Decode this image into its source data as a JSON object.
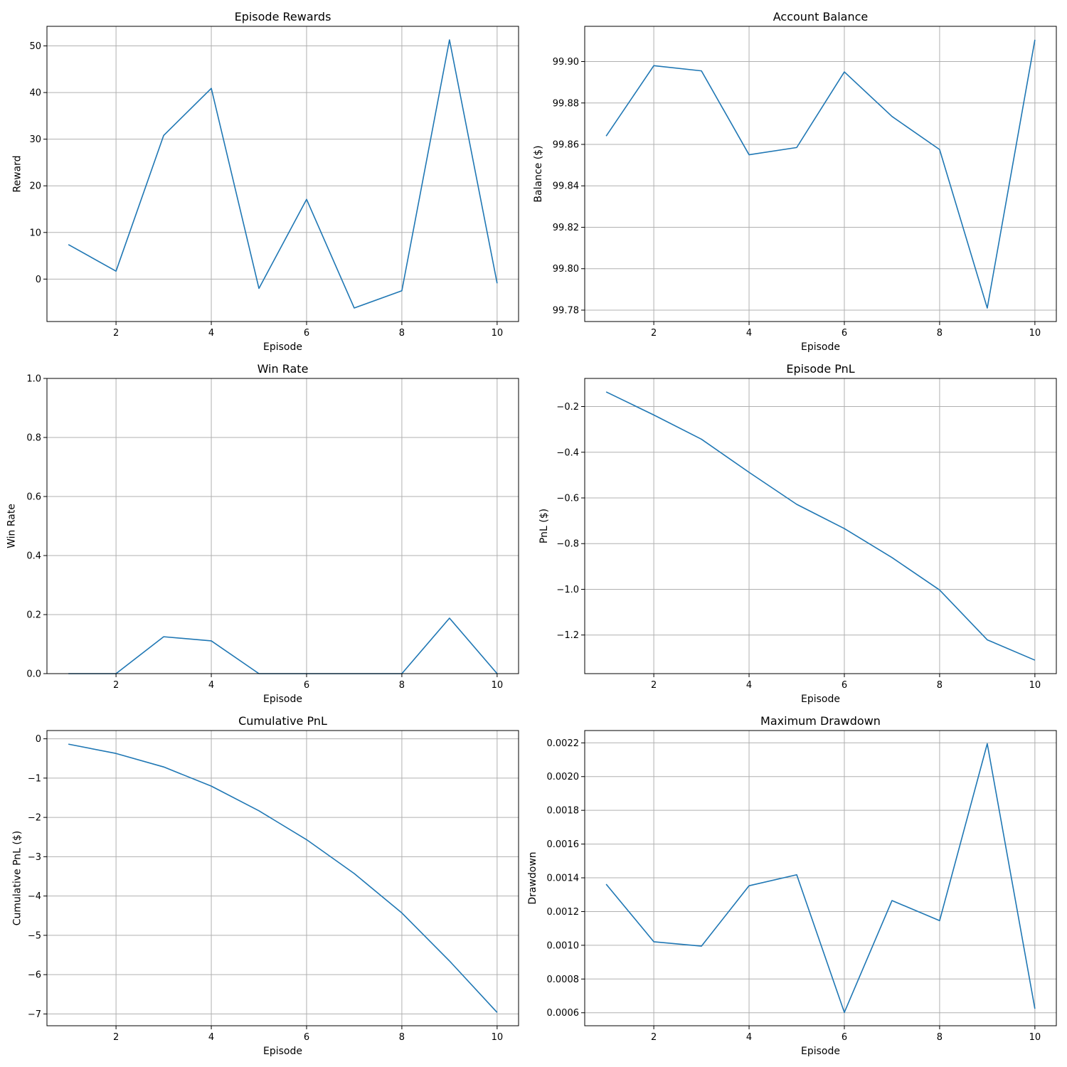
{
  "figure": {
    "line_color": "#1f77b4",
    "grid_color": "#b0b0b0",
    "axes_color": "#000000"
  },
  "chart_data": [
    {
      "type": "line",
      "title": "Episode Rewards",
      "xlabel": "Episode",
      "ylabel": "Reward",
      "x": [
        1,
        2,
        3,
        4,
        5,
        6,
        7,
        8,
        9,
        10
      ],
      "series": [
        {
          "values": [
            7.4,
            1.7,
            30.8,
            40.9,
            -2.0,
            17.1,
            -6.2,
            -2.5,
            51.3,
            -0.9
          ]
        }
      ],
      "xlim": [
        0.55,
        10.45
      ],
      "ylim": [
        -9.1,
        54.2
      ],
      "xticks": [
        2,
        4,
        6,
        8,
        10
      ],
      "xtick_labels": [
        "2",
        "4",
        "6",
        "8",
        "10"
      ],
      "yticks": [
        0,
        10,
        20,
        30,
        40,
        50
      ],
      "ytick_labels": [
        "0",
        "10",
        "20",
        "30",
        "40",
        "50"
      ],
      "grid": true
    },
    {
      "type": "line",
      "title": "Account Balance",
      "xlabel": "Episode",
      "ylabel": "Balance ($)",
      "x": [
        1,
        2,
        3,
        4,
        5,
        6,
        7,
        8,
        9,
        10
      ],
      "series": [
        {
          "values": [
            99.864,
            99.898,
            99.8955,
            99.855,
            99.8585,
            99.895,
            99.8735,
            99.8575,
            99.781,
            99.9105
          ]
        }
      ],
      "xlim": [
        0.55,
        10.45
      ],
      "ylim": [
        99.7745,
        99.917
      ],
      "xticks": [
        2,
        4,
        6,
        8,
        10
      ],
      "xtick_labels": [
        "2",
        "4",
        "6",
        "8",
        "10"
      ],
      "yticks": [
        99.78,
        99.8,
        99.82,
        99.84,
        99.86,
        99.88,
        99.9
      ],
      "ytick_labels": [
        "99.78",
        "99.80",
        "99.82",
        "99.84",
        "99.86",
        "99.88",
        "99.90"
      ],
      "grid": true
    },
    {
      "type": "line",
      "title": "Win Rate",
      "xlabel": "Episode",
      "ylabel": "Win Rate",
      "x": [
        1,
        2,
        3,
        4,
        5,
        6,
        7,
        8,
        9,
        10
      ],
      "series": [
        {
          "values": [
            0.0,
            0.0,
            0.125,
            0.111,
            0.0,
            0.0,
            0.0,
            0.0,
            0.188,
            0.0
          ]
        }
      ],
      "xlim": [
        0.55,
        10.45
      ],
      "ylim": [
        0,
        1
      ],
      "xticks": [
        2,
        4,
        6,
        8,
        10
      ],
      "xtick_labels": [
        "2",
        "4",
        "6",
        "8",
        "10"
      ],
      "yticks": [
        0,
        0.2,
        0.4,
        0.6,
        0.8,
        1.0
      ],
      "ytick_labels": [
        "0.0",
        "0.2",
        "0.4",
        "0.6",
        "0.8",
        "1.0"
      ],
      "grid": true
    },
    {
      "type": "line",
      "title": "Episode PnL",
      "xlabel": "Episode",
      "ylabel": "PnL ($)",
      "x": [
        1,
        2,
        3,
        4,
        5,
        6,
        7,
        8,
        9,
        10
      ],
      "series": [
        {
          "values": [
            -0.136,
            -0.237,
            -0.343,
            -0.488,
            -0.628,
            -0.734,
            -0.861,
            -1.003,
            -1.221,
            -1.31
          ]
        }
      ],
      "xlim": [
        0.55,
        10.45
      ],
      "ylim": [
        -1.369,
        -0.077
      ],
      "xticks": [
        2,
        4,
        6,
        8,
        10
      ],
      "xtick_labels": [
        "2",
        "4",
        "6",
        "8",
        "10"
      ],
      "yticks": [
        -1.2,
        -1.0,
        -0.8,
        -0.6,
        -0.4,
        -0.2
      ],
      "ytick_labels": [
        "−1.2",
        "−1.0",
        "−0.8",
        "−0.6",
        "−0.4",
        "−0.2"
      ],
      "grid": true
    },
    {
      "type": "line",
      "title": "Cumulative PnL",
      "xlabel": "Episode",
      "ylabel": "Cumulative PnL ($)",
      "x": [
        1,
        2,
        3,
        4,
        5,
        6,
        7,
        8,
        9,
        10
      ],
      "series": [
        {
          "values": [
            -0.136,
            -0.373,
            -0.716,
            -1.204,
            -1.832,
            -2.566,
            -3.427,
            -4.43,
            -5.651,
            -6.961
          ]
        }
      ],
      "xlim": [
        0.55,
        10.45
      ],
      "ylim": [
        -7.3,
        0.21
      ],
      "xticks": [
        2,
        4,
        6,
        8,
        10
      ],
      "xtick_labels": [
        "2",
        "4",
        "6",
        "8",
        "10"
      ],
      "yticks": [
        -7,
        -6,
        -5,
        -4,
        -3,
        -2,
        -1,
        0
      ],
      "ytick_labels": [
        "−7",
        "−6",
        "−5",
        "−4",
        "−3",
        "−2",
        "−1",
        "0"
      ],
      "grid": true
    },
    {
      "type": "line",
      "title": "Maximum Drawdown",
      "xlabel": "Episode",
      "ylabel": "Drawdown",
      "x": [
        1,
        2,
        3,
        4,
        5,
        6,
        7,
        8,
        9,
        10
      ],
      "series": [
        {
          "values": [
            0.001362,
            0.001021,
            0.000995,
            0.001353,
            0.001418,
            0.000602,
            0.001265,
            0.001146,
            0.002195,
            0.000624
          ]
        }
      ],
      "xlim": [
        0.55,
        10.45
      ],
      "ylim": [
        0.000523,
        0.002273
      ],
      "xticks": [
        2,
        4,
        6,
        8,
        10
      ],
      "xtick_labels": [
        "2",
        "4",
        "6",
        "8",
        "10"
      ],
      "yticks": [
        0.0006,
        0.0008,
        0.001,
        0.0012,
        0.0014,
        0.0016,
        0.0018,
        0.002,
        0.0022
      ],
      "ytick_labels": [
        "0.0006",
        "0.0008",
        "0.0010",
        "0.0012",
        "0.0014",
        "0.0016",
        "0.0018",
        "0.0020",
        "0.0022"
      ],
      "grid": true
    }
  ]
}
